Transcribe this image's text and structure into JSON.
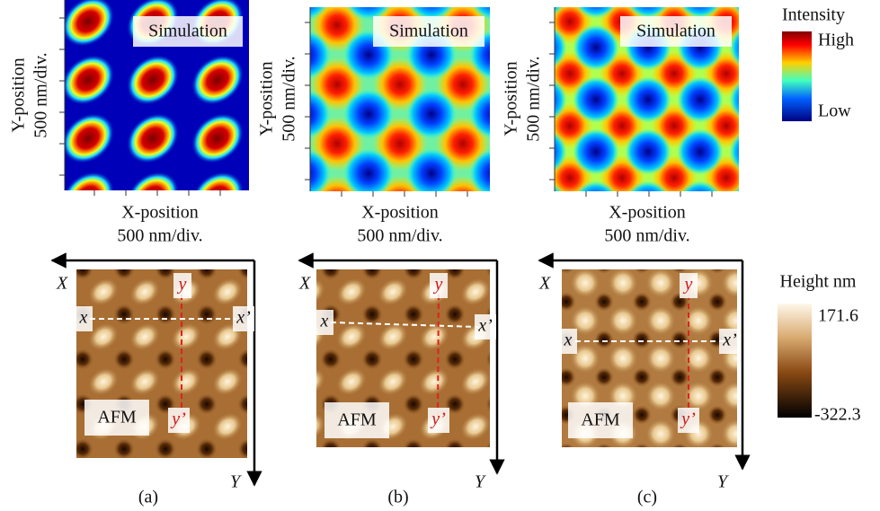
{
  "panels": [
    {
      "label": "(a)",
      "sim_label": "Simulation",
      "y_axis": "Y-position",
      "y_div": "500 nm/div.",
      "x_axis": "X-position",
      "x_div": "500 nm/div.",
      "afm_label": "AFM",
      "x_start": "x",
      "x_end": "x’",
      "y_start": "y",
      "y_end": "y’",
      "arrow_x": "X",
      "arrow_y": "Y"
    },
    {
      "label": "(b)",
      "sim_label": "Simulation",
      "y_axis": "Y-position",
      "y_div": "500 nm/div.",
      "x_axis": "X-position",
      "x_div": "500 nm/div.",
      "afm_label": "AFM",
      "x_start": "x",
      "x_end": "x’",
      "y_start": "y",
      "y_end": "y’",
      "arrow_x": "X",
      "arrow_y": "Y"
    },
    {
      "label": "(c)",
      "sim_label": "Simulation",
      "y_axis": "Y-position",
      "y_div": "500 nm/div.",
      "x_axis": "X-position",
      "x_div": "500 nm/div.",
      "afm_label": "AFM",
      "x_start": "x",
      "x_end": "x’",
      "y_start": "y",
      "y_end": "y’",
      "arrow_x": "X",
      "arrow_y": "Y"
    }
  ],
  "intensity_legend": {
    "title": "Intensity",
    "high": "High",
    "low": "Low"
  },
  "height_legend": {
    "title": "Height nm",
    "max": 171.6,
    "min": -322.3
  }
}
